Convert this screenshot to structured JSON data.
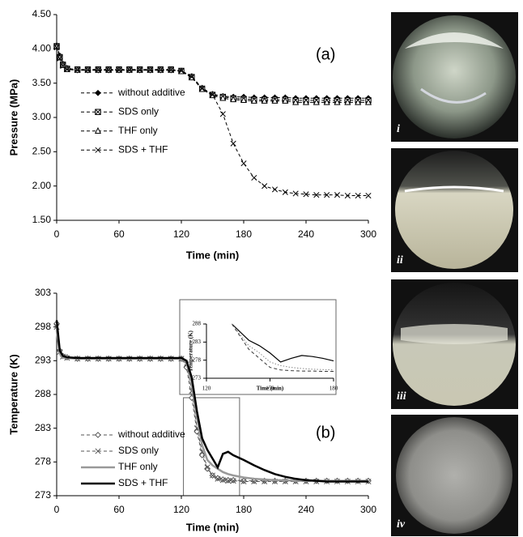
{
  "chart_data": [
    {
      "type": "line",
      "annotation": "(a)",
      "x_label": "Time (min)",
      "y_label": "Pressure (MPa)",
      "xlim": [
        0,
        300
      ],
      "xticks": [
        0,
        60,
        120,
        180,
        240,
        300
      ],
      "ylim": [
        1.5,
        4.5
      ],
      "yticks": [
        {
          "value": 1.5,
          "label": "1.50"
        },
        {
          "value": 2,
          "label": "2.00"
        },
        {
          "value": 2.5,
          "label": "2.50"
        },
        {
          "value": 3,
          "label": "3.00"
        },
        {
          "value": 3.5,
          "label": "3.50"
        },
        {
          "value": 4,
          "label": "4.00"
        },
        {
          "value": 4.5,
          "label": "4.50"
        }
      ],
      "legend": "center-left",
      "x": [
        0,
        3,
        6,
        10,
        20,
        30,
        40,
        50,
        60,
        70,
        80,
        90,
        100,
        110,
        120,
        130,
        140,
        150,
        160,
        170,
        180,
        190,
        200,
        210,
        220,
        230,
        240,
        250,
        260,
        270,
        280,
        290,
        300
      ],
      "series": [
        {
          "name": "without additive",
          "color": "#000000",
          "width": 1,
          "dash": "dashed",
          "marker": "diamond",
          "values": [
            4.05,
            3.9,
            3.78,
            3.72,
            3.69,
            3.69,
            3.69,
            3.69,
            3.69,
            3.69,
            3.69,
            3.69,
            3.69,
            3.69,
            3.68,
            3.6,
            3.43,
            3.34,
            3.31,
            3.3,
            3.3,
            3.29,
            3.29,
            3.29,
            3.29,
            3.28,
            3.28,
            3.28,
            3.28,
            3.28,
            3.28,
            3.28,
            3.28
          ]
        },
        {
          "name": "SDS only",
          "color": "#000000",
          "width": 1,
          "dash": "dashed",
          "marker": "square-x",
          "values": [
            4.04,
            3.88,
            3.77,
            3.71,
            3.7,
            3.7,
            3.7,
            3.7,
            3.7,
            3.7,
            3.7,
            3.7,
            3.7,
            3.7,
            3.68,
            3.59,
            3.42,
            3.33,
            3.3,
            3.28,
            3.27,
            3.26,
            3.26,
            3.26,
            3.26,
            3.25,
            3.25,
            3.25,
            3.25,
            3.25,
            3.25,
            3.25,
            3.25
          ]
        },
        {
          "name": "THF only",
          "color": "#000000",
          "width": 1,
          "dash": "dashed",
          "marker": "triangle",
          "values": [
            4.03,
            3.87,
            3.76,
            3.7,
            3.69,
            3.69,
            3.69,
            3.69,
            3.69,
            3.69,
            3.69,
            3.69,
            3.69,
            3.69,
            3.67,
            3.58,
            3.41,
            3.32,
            3.28,
            3.26,
            3.25,
            3.24,
            3.24,
            3.24,
            3.24,
            3.22,
            3.22,
            3.22,
            3.22,
            3.22,
            3.22,
            3.22,
            3.22
          ]
        },
        {
          "name": "SDS + THF",
          "color": "#000000",
          "width": 1,
          "dash": "dashed",
          "marker": "x",
          "values": [
            4.02,
            3.86,
            3.75,
            3.7,
            3.69,
            3.69,
            3.69,
            3.69,
            3.69,
            3.69,
            3.69,
            3.69,
            3.69,
            3.69,
            3.68,
            3.59,
            3.42,
            3.33,
            3.05,
            2.62,
            2.33,
            2.12,
            2.0,
            1.95,
            1.91,
            1.89,
            1.88,
            1.87,
            1.87,
            1.87,
            1.86,
            1.86,
            1.86
          ]
        }
      ]
    },
    {
      "type": "line",
      "annotation": "(b)",
      "x_label": "Time (min)",
      "y_label": "Temperature (K)",
      "xlim": [
        0,
        300
      ],
      "xticks": [
        0,
        60,
        120,
        180,
        240,
        300
      ],
      "ylim": [
        273,
        303
      ],
      "yticks": [
        273,
        278,
        283,
        288,
        293,
        298,
        303
      ],
      "legend": "lower-left",
      "x": [
        0,
        3,
        6,
        10,
        20,
        30,
        40,
        50,
        60,
        70,
        80,
        90,
        100,
        110,
        120,
        125,
        130,
        135,
        140,
        145,
        150,
        155,
        160,
        165,
        170,
        180,
        190,
        200,
        210,
        220,
        230,
        240,
        250,
        260,
        270,
        280,
        290,
        300
      ],
      "series": [
        {
          "name": "without additive",
          "color": "#555555",
          "width": 1,
          "dash": "dashed",
          "marker": "diamond-open",
          "values": [
            298.5,
            294.5,
            293.7,
            293.5,
            293.3,
            293.3,
            293.3,
            293.3,
            293.3,
            293.3,
            293.3,
            293.3,
            293.3,
            293.3,
            293.3,
            292.0,
            287.5,
            282.5,
            279.0,
            277.0,
            276.0,
            275.6,
            275.4,
            275.3,
            275.3,
            275.2,
            275.2,
            275.2,
            275.2,
            275.2,
            275.2,
            275.2,
            275.2,
            275.2,
            275.2,
            275.2,
            275.2,
            275.2
          ]
        },
        {
          "name": "SDS only",
          "color": "#555555",
          "width": 1,
          "dash": "dashed",
          "marker": "x",
          "values": [
            298.0,
            294.3,
            293.6,
            293.4,
            293.3,
            293.3,
            293.3,
            293.3,
            293.3,
            293.3,
            293.3,
            293.3,
            293.3,
            293.3,
            293.3,
            292.5,
            288.5,
            283.0,
            279.5,
            277.2,
            276.0,
            275.5,
            275.3,
            275.2,
            275.2,
            275.1,
            275.1,
            275.1,
            275.1,
            275.1,
            275.1,
            275.1,
            275.1,
            275.1,
            275.1,
            275.1,
            275.1,
            275.1
          ]
        },
        {
          "name": "THF only",
          "color": "#999999",
          "width": 2.5,
          "dash": "solid",
          "marker": "none",
          "values": [
            297.5,
            294.0,
            293.5,
            293.4,
            293.3,
            293.3,
            293.3,
            293.3,
            293.3,
            293.3,
            293.3,
            293.3,
            293.3,
            293.3,
            293.3,
            292.8,
            289.5,
            284.5,
            280.5,
            278.3,
            277.5,
            277.0,
            276.5,
            276.2,
            276.0,
            275.7,
            275.5,
            275.4,
            275.3,
            275.3,
            275.2,
            275.2,
            275.2,
            275.2,
            275.2,
            275.2,
            275.2,
            275.2
          ]
        },
        {
          "name": "SDS + THF",
          "color": "#000000",
          "width": 2.5,
          "dash": "solid",
          "marker": "none",
          "values": [
            299.0,
            294.5,
            293.7,
            293.5,
            293.4,
            293.4,
            293.4,
            293.4,
            293.4,
            293.4,
            293.4,
            293.4,
            293.4,
            293.4,
            293.4,
            293.0,
            290.5,
            285.5,
            281.5,
            279.8,
            278.5,
            277.2,
            279.2,
            279.5,
            279.0,
            278.3,
            277.5,
            276.8,
            276.2,
            275.8,
            275.5,
            275.3,
            275.2,
            275.1,
            275.1,
            275.1,
            275.1,
            275.1
          ]
        }
      ]
    },
    {
      "type": "line",
      "x_label": "Time (min)",
      "y_label": "Temperature (K)",
      "xlim": [
        120,
        180
      ],
      "xticks": [
        120,
        150,
        180
      ],
      "ylim": [
        273,
        288
      ],
      "yticks": [
        273,
        278,
        283,
        288
      ],
      "x": [
        132,
        140,
        145,
        150,
        155,
        160,
        165,
        170,
        175,
        180
      ],
      "series": [
        {
          "color": "#000000",
          "width": 1.2,
          "dash": "solid",
          "marker": "none",
          "values": [
            288,
            283.5,
            282,
            280,
            277.5,
            278.5,
            279.3,
            279,
            278.5,
            277.8
          ]
        },
        {
          "color": "#333333",
          "width": 1,
          "dash": "dashed",
          "marker": "none",
          "values": [
            288,
            281,
            278.5,
            276,
            275.3,
            275.1,
            275,
            275,
            274.9,
            274.9
          ]
        },
        {
          "color": "#888888",
          "width": 1,
          "dash": "dotted",
          "marker": "none",
          "values": [
            288,
            282,
            280,
            277.5,
            276.5,
            276,
            275.7,
            275.5,
            275.4,
            275.3
          ]
        }
      ]
    }
  ],
  "photos": {
    "labels": [
      "i",
      "ii",
      "iii",
      "iv"
    ]
  }
}
